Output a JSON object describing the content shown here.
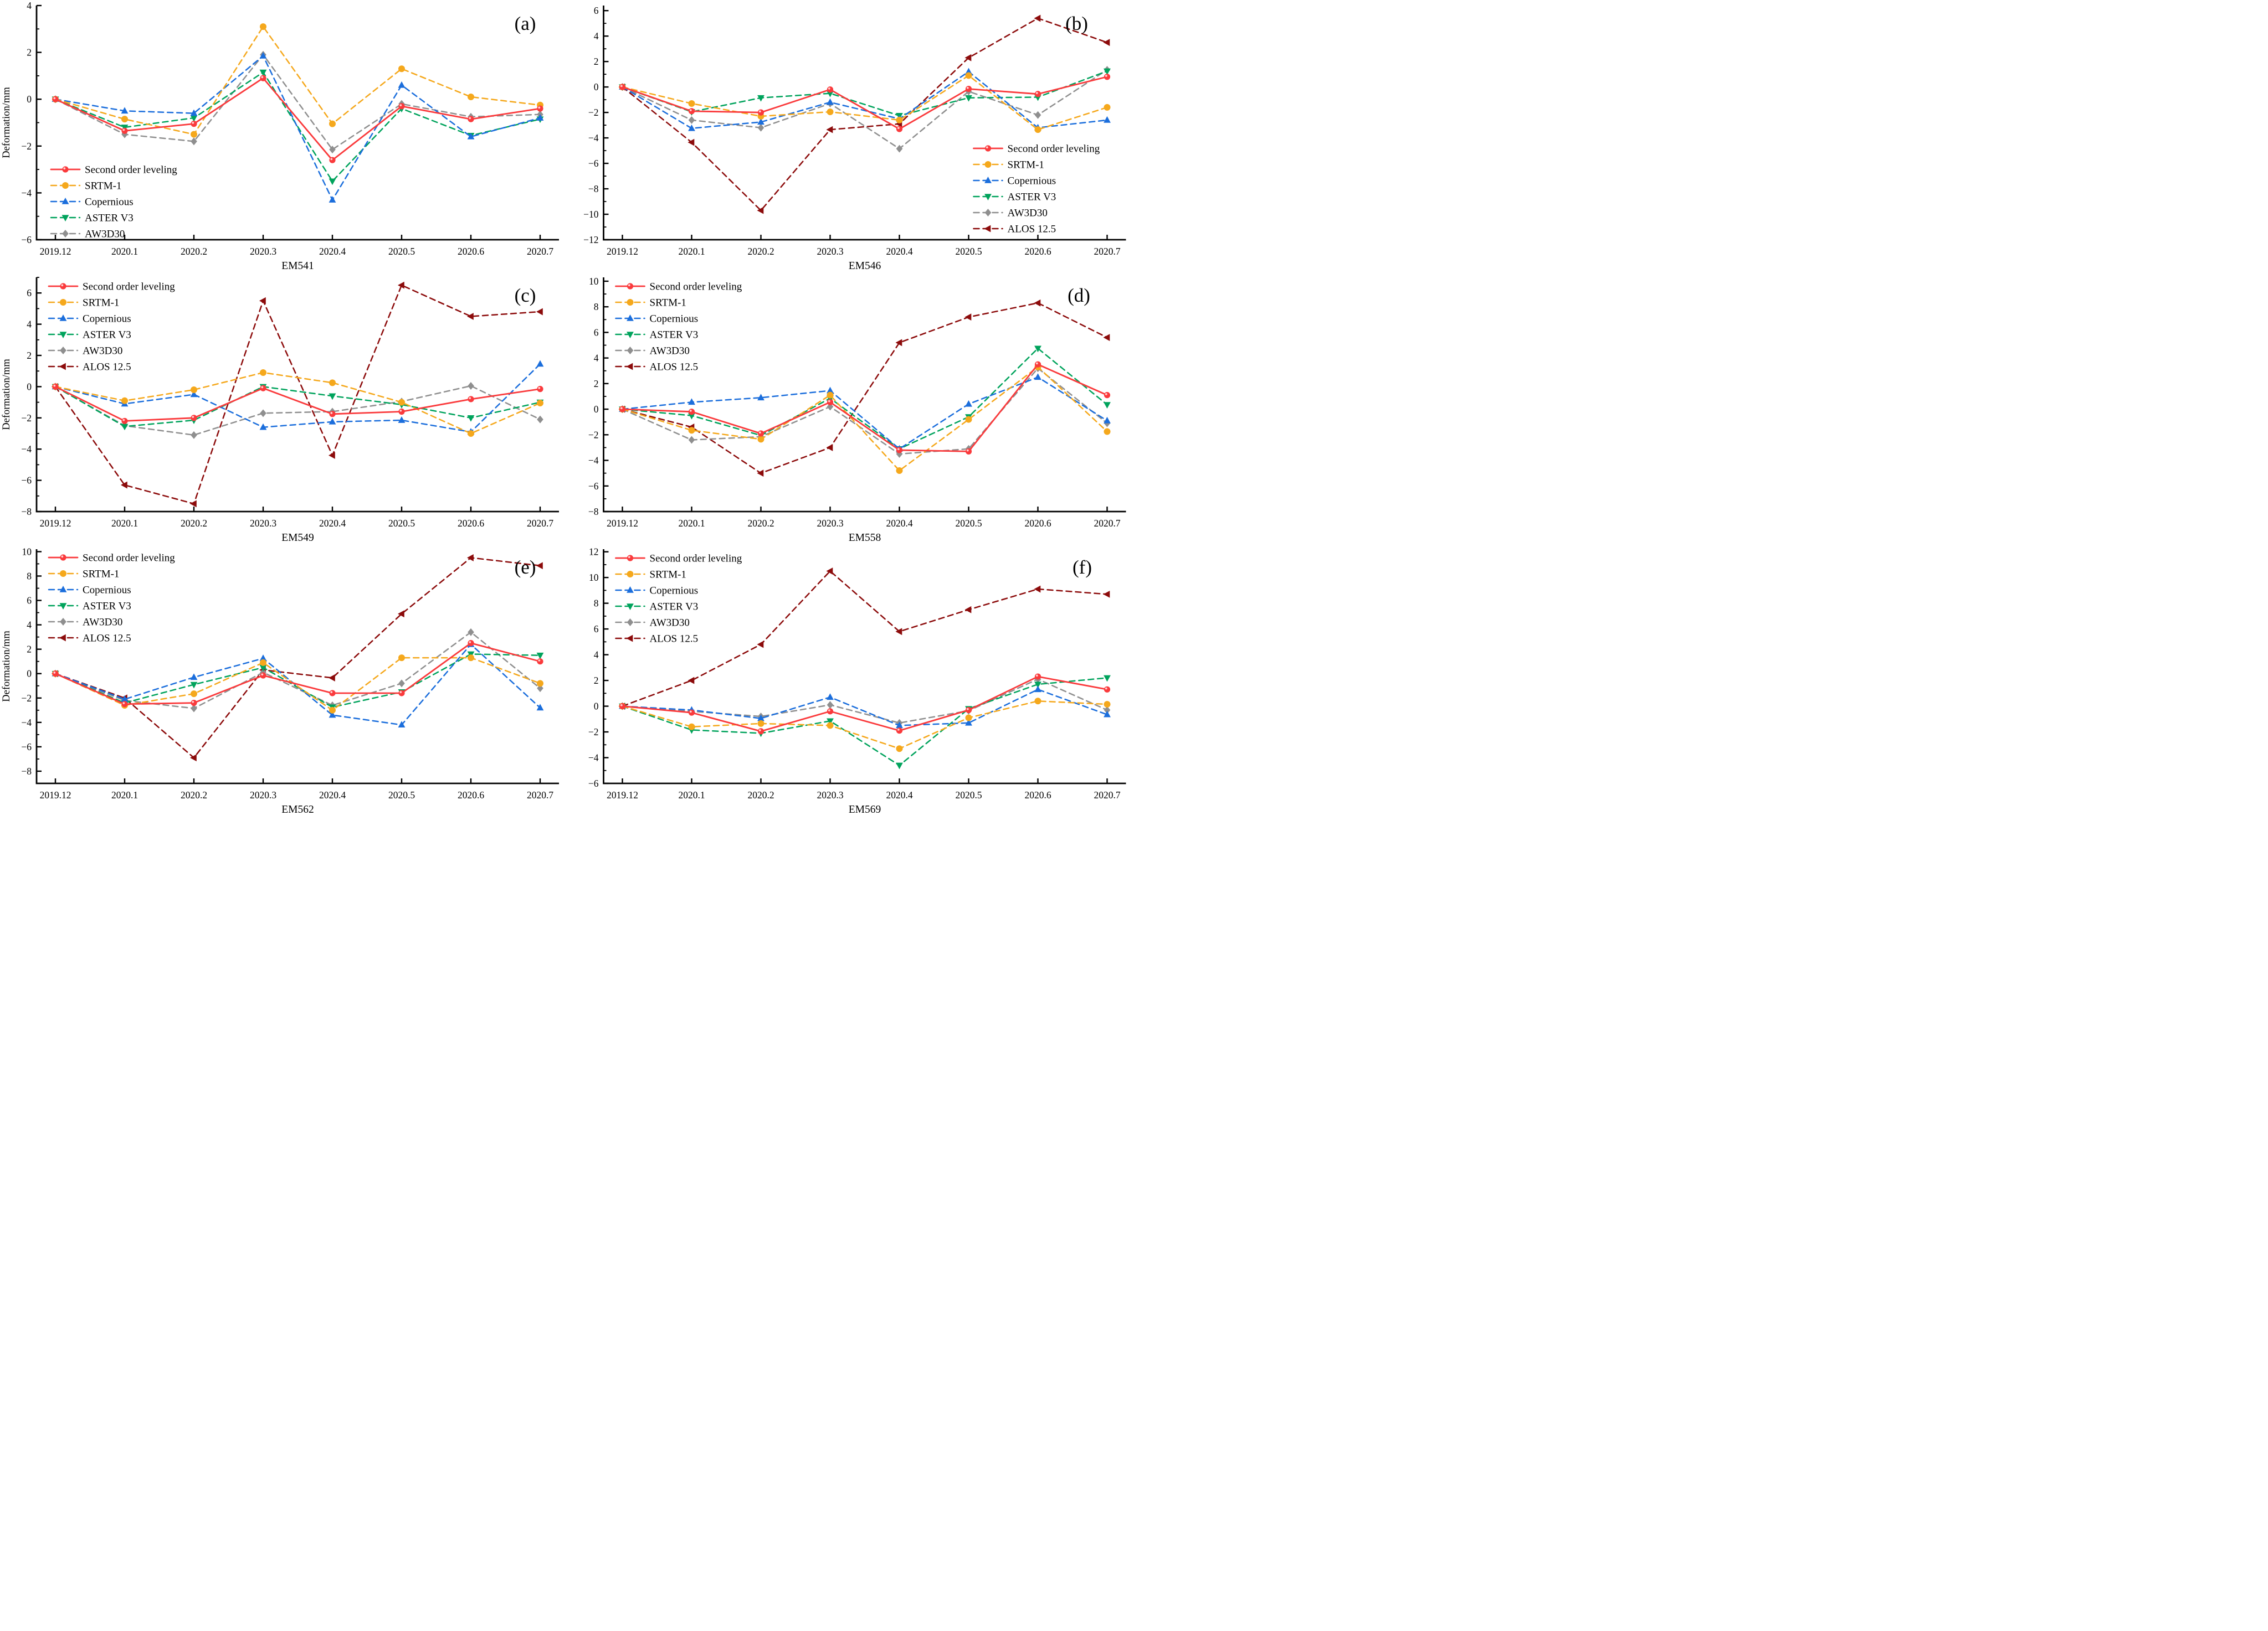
{
  "figure": {
    "background": "#ffffff",
    "axis_color": "#000000",
    "y_axis_label": "Deformation/mm",
    "x_categories": [
      "2019.12",
      "2020.1",
      "2020.2",
      "2020.3",
      "2020.4",
      "2020.5",
      "2020.6",
      "2020.7"
    ],
    "series_styles": [
      {
        "key": "leveling",
        "label": "Second order leveling",
        "color": "#FA3A3C",
        "marker": "sphere",
        "dashed": false
      },
      {
        "key": "srtm1",
        "label": "SRTM-1",
        "color": "#F5A81C",
        "marker": "circle",
        "dashed": true
      },
      {
        "key": "copernious",
        "label": "Copernious",
        "color": "#1B6EDC",
        "marker": "triangle-up",
        "dashed": true
      },
      {
        "key": "asterv3",
        "label": "ASTER V3",
        "color": "#00A35C",
        "marker": "triangle-down",
        "dashed": true
      },
      {
        "key": "aw3d30",
        "label": "AW3D30",
        "color": "#8F8F8F",
        "marker": "diamond",
        "dashed": true
      },
      {
        "key": "alos125",
        "label": "ALOS 12.5",
        "color": "#8C0B0B",
        "marker": "triangle-left",
        "dashed": true
      }
    ]
  },
  "chart_data": [
    {
      "type": "line",
      "panel_letter": "(a)",
      "xlabel": "EM541",
      "ylabel": "Deformation/mm",
      "ylim": [
        -6,
        4
      ],
      "yticks": [
        -6,
        -4,
        -2,
        0,
        2,
        4
      ],
      "legend_pos": {
        "x": 92,
        "y": 296
      },
      "letter_pos": {
        "x": 948,
        "y": 54
      },
      "categories": [
        "2019.12",
        "2020.1",
        "2020.2",
        "2020.3",
        "2020.4",
        "2020.5",
        "2020.6",
        "2020.7"
      ],
      "series": [
        {
          "name": "Second order leveling",
          "values": [
            0,
            -1.35,
            -1.05,
            0.9,
            -2.6,
            -0.3,
            -0.85,
            -0.4
          ]
        },
        {
          "name": "SRTM-1",
          "values": [
            0,
            -0.85,
            -1.5,
            3.1,
            -1.05,
            1.3,
            0.1,
            -0.25
          ]
        },
        {
          "name": "Copernious",
          "values": [
            0,
            -0.5,
            -0.6,
            1.85,
            -4.3,
            0.6,
            -1.6,
            -0.8
          ]
        },
        {
          "name": "ASTER V3",
          "values": [
            0,
            -1.2,
            -0.8,
            1.15,
            -3.5,
            -0.4,
            -1.55,
            -0.85
          ]
        },
        {
          "name": "AW3D30",
          "values": [
            0,
            -1.5,
            -1.8,
            1.9,
            -2.15,
            -0.2,
            -0.75,
            -0.65
          ]
        }
      ]
    },
    {
      "type": "line",
      "panel_letter": "(b)",
      "xlabel": "EM546",
      "ylabel": "",
      "ylim": [
        -12,
        6.4
      ],
      "yticks": [
        -12,
        -10,
        -8,
        -6,
        -4,
        -2,
        0,
        2,
        4,
        6
      ],
      "legend_pos": {
        "x": 734,
        "y": 258
      },
      "letter_pos": {
        "x": 920,
        "y": 54
      },
      "categories": [
        "2019.12",
        "2020.1",
        "2020.2",
        "2020.3",
        "2020.4",
        "2020.5",
        "2020.6",
        "2020.7"
      ],
      "series": [
        {
          "name": "Second order leveling",
          "values": [
            0,
            -1.9,
            -2.0,
            -0.2,
            -3.3,
            -0.15,
            -0.55,
            0.8
          ]
        },
        {
          "name": "SRTM-1",
          "values": [
            0,
            -1.3,
            -2.3,
            -1.95,
            -2.6,
            0.9,
            -3.35,
            -1.6
          ]
        },
        {
          "name": "Copernious",
          "values": [
            0,
            -3.25,
            -2.75,
            -1.2,
            -2.5,
            1.2,
            -3.2,
            -2.6
          ]
        },
        {
          "name": "ASTER V3",
          "values": [
            0,
            -1.95,
            -0.85,
            -0.5,
            -2.25,
            -0.85,
            -0.8,
            1.25
          ]
        },
        {
          "name": "AW3D30",
          "values": [
            0,
            -2.6,
            -3.2,
            -1.3,
            -4.85,
            -0.35,
            -2.2,
            1.35
          ]
        },
        {
          "name": "ALOS 12.5",
          "values": [
            0,
            -4.35,
            -9.7,
            -3.35,
            -2.9,
            2.3,
            5.4,
            3.5
          ]
        }
      ]
    },
    {
      "type": "line",
      "panel_letter": "(c)",
      "xlabel": "EM549",
      "ylabel": "Deformation/mm",
      "ylim": [
        -8,
        7
      ],
      "yticks": [
        -8,
        -6,
        -4,
        -2,
        0,
        2,
        4,
        6
      ],
      "legend_pos": {
        "x": 88,
        "y": 16
      },
      "letter_pos": {
        "x": 948,
        "y": 54
      },
      "categories": [
        "2019.12",
        "2020.1",
        "2020.2",
        "2020.3",
        "2020.4",
        "2020.5",
        "2020.6",
        "2020.7"
      ],
      "series": [
        {
          "name": "Second order leveling",
          "values": [
            0,
            -2.2,
            -2.0,
            -0.1,
            -1.75,
            -1.6,
            -0.8,
            -0.15
          ]
        },
        {
          "name": "SRTM-1",
          "values": [
            0,
            -0.9,
            -0.2,
            0.9,
            0.25,
            -1.0,
            -3.0,
            -1.05
          ]
        },
        {
          "name": "Copernious",
          "values": [
            0,
            -1.1,
            -0.5,
            -2.6,
            -2.25,
            -2.15,
            -2.9,
            1.45
          ]
        },
        {
          "name": "ASTER V3",
          "values": [
            0,
            -2.55,
            -2.15,
            0.0,
            -0.6,
            -1.15,
            -2.0,
            -1.0
          ]
        },
        {
          "name": "AW3D30",
          "values": [
            0,
            -2.5,
            -3.1,
            -1.7,
            -1.6,
            -0.95,
            0.05,
            -2.1
          ]
        },
        {
          "name": "ALOS 12.5",
          "values": [
            0,
            -6.3,
            -7.5,
            5.5,
            -4.4,
            6.5,
            4.5,
            4.8
          ]
        }
      ]
    },
    {
      "type": "line",
      "panel_letter": "(d)",
      "xlabel": "EM558",
      "ylabel": "",
      "ylim": [
        -8,
        10.3
      ],
      "yticks": [
        -8,
        -6,
        -4,
        -2,
        0,
        2,
        4,
        6,
        8,
        10
      ],
      "legend_pos": {
        "x": 88,
        "y": 16
      },
      "letter_pos": {
        "x": 924,
        "y": 54
      },
      "categories": [
        "2019.12",
        "2020.1",
        "2020.2",
        "2020.3",
        "2020.4",
        "2020.5",
        "2020.6",
        "2020.7"
      ],
      "series": [
        {
          "name": "Second order leveling",
          "values": [
            0,
            -0.2,
            -1.9,
            0.55,
            -3.2,
            -3.3,
            3.5,
            1.1
          ]
        },
        {
          "name": "SRTM-1",
          "values": [
            0,
            -1.65,
            -2.35,
            1.1,
            -4.8,
            -0.8,
            3.3,
            -1.75
          ]
        },
        {
          "name": "Copernious",
          "values": [
            0,
            0.55,
            0.9,
            1.45,
            -3.1,
            0.4,
            2.5,
            -0.9
          ]
        },
        {
          "name": "ASTER V3",
          "values": [
            0,
            -0.5,
            -2.05,
            0.85,
            -3.1,
            -0.6,
            4.75,
            0.35
          ]
        },
        {
          "name": "AW3D30",
          "values": [
            0,
            -2.4,
            -2.15,
            0.2,
            -3.5,
            -3.1,
            3.2,
            -1.1
          ]
        },
        {
          "name": "ALOS 12.5",
          "values": [
            0,
            -1.4,
            -5.0,
            -3.0,
            5.2,
            7.2,
            8.3,
            5.6
          ]
        }
      ]
    },
    {
      "type": "line",
      "panel_letter": "(e)",
      "xlabel": "EM562",
      "ylabel": "Deformation/mm",
      "ylim": [
        -9,
        10.2
      ],
      "yticks": [
        -8,
        -6,
        -4,
        -2,
        0,
        2,
        4,
        6,
        8,
        10
      ],
      "legend_pos": {
        "x": 88,
        "y": 15
      },
      "letter_pos": {
        "x": 948,
        "y": 54
      },
      "categories": [
        "2019.12",
        "2020.1",
        "2020.2",
        "2020.3",
        "2020.4",
        "2020.5",
        "2020.6",
        "2020.7"
      ],
      "series": [
        {
          "name": "Second order leveling",
          "values": [
            0,
            -2.5,
            -2.4,
            -0.15,
            -1.6,
            -1.6,
            2.5,
            1.0
          ]
        },
        {
          "name": "SRTM-1",
          "values": [
            0,
            -2.6,
            -1.65,
            0.9,
            -3.0,
            1.3,
            1.3,
            -0.8
          ]
        },
        {
          "name": "Copernious",
          "values": [
            0,
            -2.1,
            -0.3,
            1.25,
            -3.4,
            -4.2,
            2.4,
            -2.8
          ]
        },
        {
          "name": "ASTER V3",
          "values": [
            0,
            -2.4,
            -0.9,
            0.5,
            -2.75,
            -1.5,
            1.6,
            1.5
          ]
        },
        {
          "name": "AW3D30",
          "values": [
            0,
            -2.2,
            -2.85,
            0.1,
            -2.6,
            -0.8,
            3.4,
            -1.2
          ]
        },
        {
          "name": "ALOS 12.5",
          "values": [
            0,
            -2.0,
            -6.9,
            0.3,
            -0.35,
            4.9,
            9.5,
            8.85
          ]
        }
      ]
    },
    {
      "type": "line",
      "panel_letter": "(f)",
      "xlabel": "EM569",
      "ylabel": "",
      "ylim": [
        -6,
        12.2
      ],
      "yticks": [
        -6,
        -4,
        -2,
        0,
        2,
        4,
        6,
        8,
        10,
        12
      ],
      "legend_pos": {
        "x": 88,
        "y": 16
      },
      "letter_pos": {
        "x": 930,
        "y": 54
      },
      "categories": [
        "2019.12",
        "2020.1",
        "2020.2",
        "2020.3",
        "2020.4",
        "2020.5",
        "2020.6",
        "2020.7"
      ],
      "series": [
        {
          "name": "Second order leveling",
          "values": [
            0,
            -0.5,
            -1.95,
            -0.4,
            -1.9,
            -0.3,
            2.3,
            1.3
          ]
        },
        {
          "name": "SRTM-1",
          "values": [
            0,
            -1.6,
            -1.35,
            -1.5,
            -3.3,
            -0.9,
            0.4,
            0.15
          ]
        },
        {
          "name": "Copernious",
          "values": [
            0,
            -0.3,
            -0.95,
            0.7,
            -1.5,
            -1.3,
            1.3,
            -0.65
          ]
        },
        {
          "name": "ASTER V3",
          "values": [
            0,
            -1.85,
            -2.1,
            -1.15,
            -4.6,
            -0.2,
            1.7,
            2.2
          ]
        },
        {
          "name": "AW3D30",
          "values": [
            0,
            -0.4,
            -0.8,
            0.1,
            -1.3,
            -0.35,
            2.1,
            -0.3
          ]
        },
        {
          "name": "ALOS 12.5",
          "values": [
            0,
            2.0,
            4.8,
            10.5,
            5.8,
            7.5,
            9.1,
            8.7
          ]
        }
      ]
    }
  ]
}
